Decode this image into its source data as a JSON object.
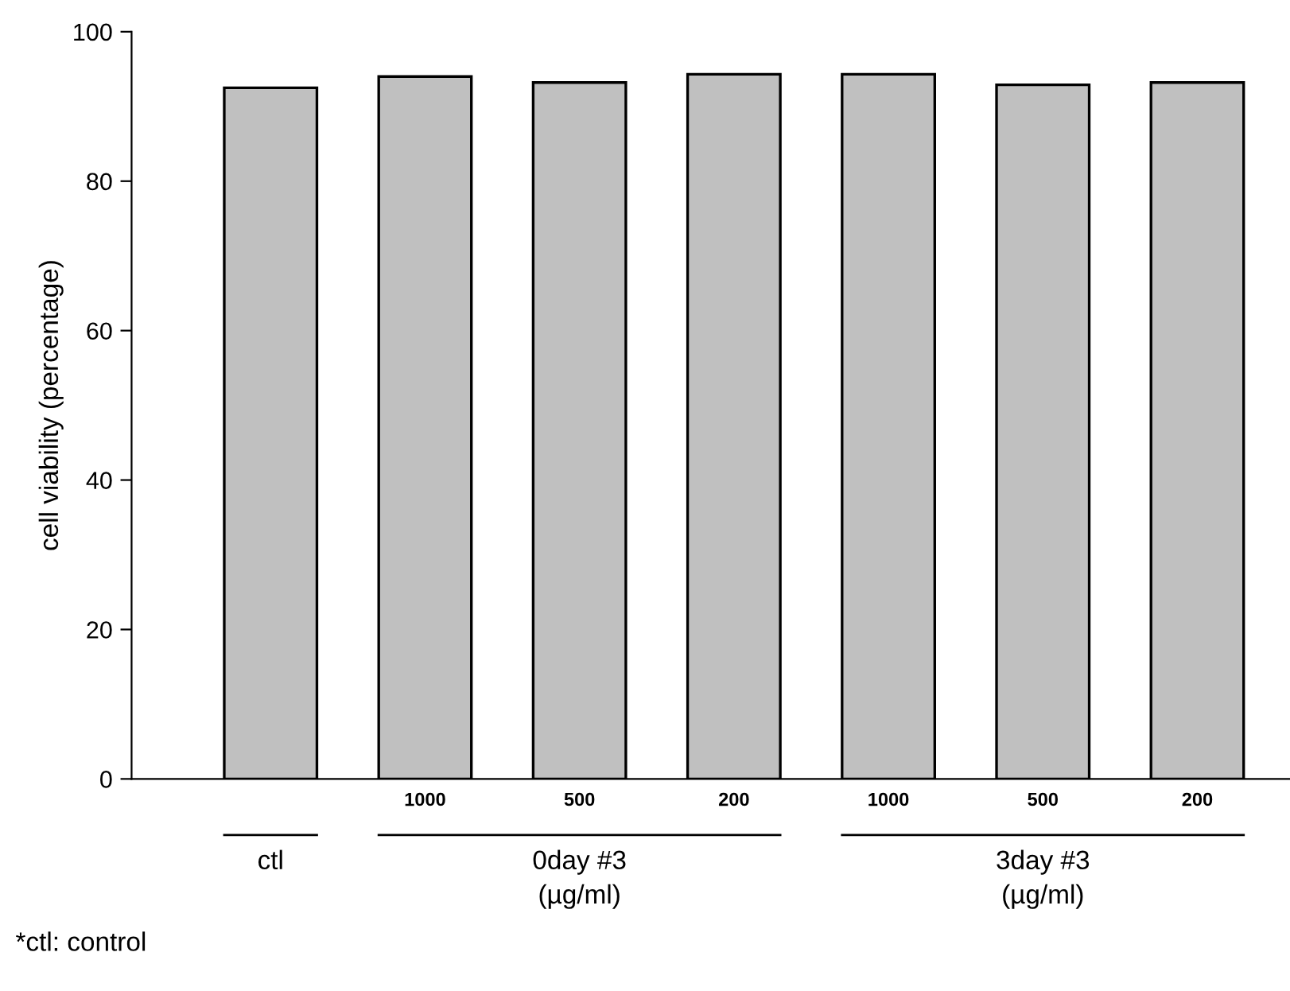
{
  "chart_data": {
    "type": "bar",
    "ylabel": "cell viability (percentage)",
    "categories": [
      null,
      "1000",
      "500",
      "200",
      "1000",
      "500",
      "200"
    ],
    "values": [
      92.5,
      94.0,
      93.2,
      94.3,
      94.3,
      92.9,
      93.2
    ],
    "color": "#c0c0c0",
    "ylim": [
      0,
      100
    ],
    "yticks": [
      0,
      20,
      40,
      60,
      80,
      100
    ],
    "grid": false,
    "legend": false,
    "annotations": [
      "ctl",
      "0day #3\n(µg/ml)",
      "3day #3\n(µg/ml)",
      "*ctl: control"
    ]
  }
}
